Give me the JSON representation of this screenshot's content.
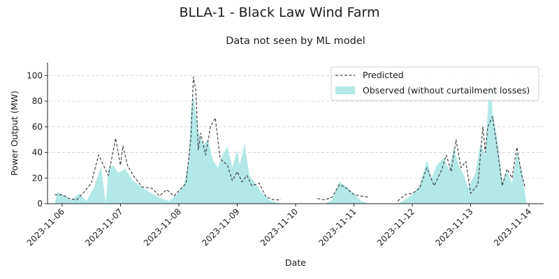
{
  "chart_data": {
    "type": "line",
    "title": "BLLA-1 - Black Law Wind Farm",
    "subtitle": "Data not seen by ML model",
    "xlabel": "Date",
    "ylabel": "Power Output (MW)",
    "ylim": [
      0,
      110
    ],
    "yticks": [
      0,
      20,
      40,
      60,
      80,
      100
    ],
    "xlim": [
      "2023-11-05 18:00",
      "2023-11-14 06:00"
    ],
    "xticks": [
      "2023-11-06",
      "2023-11-07",
      "2023-11-08",
      "2023-11-09",
      "2023-11-10",
      "2023-11-11",
      "2023-11-12",
      "2023-11-13",
      "2023-11-14"
    ],
    "grid": "horizontal dashed",
    "legend": {
      "position": "top-right",
      "entries": [
        "Predicted",
        "Observed (without curtailment losses)"
      ]
    },
    "series": [
      {
        "name": "Predicted",
        "style": "dashed line",
        "color": "#444444",
        "points": [
          [
            "2023-11-05 21:00",
            7
          ],
          [
            "2023-11-06 00:00",
            7
          ],
          [
            "2023-11-06 03:00",
            4
          ],
          [
            "2023-11-06 06:00",
            3
          ],
          [
            "2023-11-06 09:00",
            9
          ],
          [
            "2023-11-06 12:00",
            16
          ],
          [
            "2023-11-06 15:00",
            38
          ],
          [
            "2023-11-06 19:00",
            22
          ],
          [
            "2023-11-06 22:00",
            51
          ],
          [
            "2023-11-07 00:00",
            30
          ],
          [
            "2023-11-07 01:00",
            45
          ],
          [
            "2023-11-07 03:00",
            29
          ],
          [
            "2023-11-07 06:00",
            20
          ],
          [
            "2023-11-07 09:00",
            13
          ],
          [
            "2023-11-07 13:00",
            12
          ],
          [
            "2023-11-07 16:00",
            6
          ],
          [
            "2023-11-07 19:00",
            11
          ],
          [
            "2023-11-07 22:00",
            6
          ],
          [
            "2023-11-08 00:00",
            10
          ],
          [
            "2023-11-08 03:00",
            16
          ],
          [
            "2023-11-08 05:00",
            52
          ],
          [
            "2023-11-08 06:00",
            99
          ],
          [
            "2023-11-08 07:00",
            88
          ],
          [
            "2023-11-08 08:00",
            42
          ],
          [
            "2023-11-08 09:00",
            55
          ],
          [
            "2023-11-08 11:00",
            38
          ],
          [
            "2023-11-08 13:00",
            60
          ],
          [
            "2023-11-08 15:00",
            67
          ],
          [
            "2023-11-08 17:00",
            35
          ],
          [
            "2023-11-08 20:00",
            30
          ],
          [
            "2023-11-08 22:00",
            18
          ],
          [
            "2023-11-09 00:00",
            25
          ],
          [
            "2023-11-09 02:00",
            17
          ],
          [
            "2023-11-09 04:00",
            22
          ],
          [
            "2023-11-09 06:00",
            14
          ],
          [
            "2023-11-09 09:00",
            16
          ],
          [
            "2023-11-09 12:00",
            5
          ],
          [
            "2023-11-09 15:00",
            3
          ],
          [
            "2023-11-09 18:00",
            3
          ],
          [
            "2023-11-10 09:00",
            4
          ],
          [
            "2023-11-10 12:00",
            3
          ],
          [
            "2023-11-10 15:00",
            5
          ],
          [
            "2023-11-10 18:00",
            15
          ],
          [
            "2023-11-10 21:00",
            12
          ],
          [
            "2023-11-11 00:00",
            7
          ],
          [
            "2023-11-11 03:00",
            6
          ],
          [
            "2023-11-11 06:00",
            5
          ],
          [
            "2023-11-11 18:00",
            2
          ],
          [
            "2023-11-11 21:00",
            7
          ],
          [
            "2023-11-12 00:00",
            8
          ],
          [
            "2023-11-12 03:00",
            12
          ],
          [
            "2023-11-12 06:00",
            28
          ],
          [
            "2023-11-12 09:00",
            14
          ],
          [
            "2023-11-12 12:00",
            26
          ],
          [
            "2023-11-12 14:00",
            38
          ],
          [
            "2023-11-12 16:00",
            25
          ],
          [
            "2023-11-12 18:00",
            50
          ],
          [
            "2023-11-12 20:00",
            28
          ],
          [
            "2023-11-12 22:00",
            33
          ],
          [
            "2023-11-13 00:00",
            8
          ],
          [
            "2023-11-13 03:00",
            15
          ],
          [
            "2023-11-13 05:00",
            60
          ],
          [
            "2023-11-13 06:00",
            40
          ],
          [
            "2023-11-13 07:00",
            60
          ],
          [
            "2023-11-13 09:00",
            68
          ],
          [
            "2023-11-13 11:00",
            42
          ],
          [
            "2023-11-13 13:00",
            14
          ],
          [
            "2023-11-13 15:00",
            27
          ],
          [
            "2023-11-13 17:00",
            20
          ],
          [
            "2023-11-13 19:00",
            44
          ],
          [
            "2023-11-13 21:00",
            22
          ],
          [
            "2023-11-13 22:30",
            12
          ]
        ]
      },
      {
        "name": "Observed (without curtailment losses)",
        "style": "filled area",
        "color": "#b2e8e6",
        "points": [
          [
            "2023-11-05 21:00",
            0
          ],
          [
            "2023-11-05 22:00",
            9
          ],
          [
            "2023-11-06 01:00",
            6
          ],
          [
            "2023-11-06 04:00",
            3
          ],
          [
            "2023-11-06 07:00",
            8
          ],
          [
            "2023-11-06 10:00",
            2
          ],
          [
            "2023-11-06 13:00",
            12
          ],
          [
            "2023-11-06 16:00",
            29
          ],
          [
            "2023-11-06 18:00",
            0
          ],
          [
            "2023-11-06 19:00",
            27
          ],
          [
            "2023-11-06 21:00",
            30
          ],
          [
            "2023-11-06 23:00",
            24
          ],
          [
            "2023-11-07 02:00",
            27
          ],
          [
            "2023-11-07 05:00",
            18
          ],
          [
            "2023-11-07 08:00",
            14
          ],
          [
            "2023-11-07 11:00",
            10
          ],
          [
            "2023-11-07 14:00",
            7
          ],
          [
            "2023-11-07 17:00",
            4
          ],
          [
            "2023-11-07 20:00",
            2
          ],
          [
            "2023-11-07 23:00",
            7
          ],
          [
            "2023-11-08 02:00",
            14
          ],
          [
            "2023-11-08 04:00",
            33
          ],
          [
            "2023-11-08 05:00",
            72
          ],
          [
            "2023-11-08 06:00",
            84
          ],
          [
            "2023-11-08 08:00",
            56
          ],
          [
            "2023-11-08 10:00",
            46
          ],
          [
            "2023-11-08 12:00",
            50
          ],
          [
            "2023-11-08 14:00",
            34
          ],
          [
            "2023-11-08 16:00",
            28
          ],
          [
            "2023-11-08 18:00",
            38
          ],
          [
            "2023-11-08 20:00",
            45
          ],
          [
            "2023-11-08 22:00",
            28
          ],
          [
            "2023-11-09 00:00",
            42
          ],
          [
            "2023-11-09 01:00",
            30
          ],
          [
            "2023-11-09 03:00",
            47
          ],
          [
            "2023-11-09 05:00",
            22
          ],
          [
            "2023-11-09 07:00",
            17
          ],
          [
            "2023-11-09 10:00",
            9
          ],
          [
            "2023-11-09 13:00",
            3
          ],
          [
            "2023-11-09 16:00",
            1
          ],
          [
            "2023-11-09 19:00",
            0
          ],
          [
            "2023-11-10 12:00",
            0
          ],
          [
            "2023-11-10 15:00",
            3
          ],
          [
            "2023-11-10 18:00",
            17
          ],
          [
            "2023-11-10 21:00",
            13
          ],
          [
            "2023-11-11 00:00",
            8
          ],
          [
            "2023-11-11 03:00",
            2
          ],
          [
            "2023-11-11 06:00",
            0
          ],
          [
            "2023-11-11 18:00",
            0
          ],
          [
            "2023-11-11 21:00",
            3
          ],
          [
            "2023-11-12 00:00",
            7
          ],
          [
            "2023-11-12 03:00",
            14
          ],
          [
            "2023-11-12 06:00",
            34
          ],
          [
            "2023-11-12 08:00",
            20
          ],
          [
            "2023-11-12 10:00",
            30
          ],
          [
            "2023-11-12 13:00",
            36
          ],
          [
            "2023-11-12 15:00",
            26
          ],
          [
            "2023-11-12 17:00",
            44
          ],
          [
            "2023-11-12 19:00",
            30
          ],
          [
            "2023-11-12 21:00",
            23
          ],
          [
            "2023-11-12 23:00",
            12
          ],
          [
            "2023-11-13 02:00",
            24
          ],
          [
            "2023-11-13 04:00",
            47
          ],
          [
            "2023-11-13 06:00",
            38
          ],
          [
            "2023-11-13 08:00",
            104
          ],
          [
            "2023-11-13 09:00",
            72
          ],
          [
            "2023-11-13 11:00",
            50
          ],
          [
            "2023-11-13 13:00",
            18
          ],
          [
            "2023-11-13 15:00",
            25
          ],
          [
            "2023-11-13 17:00",
            16
          ],
          [
            "2023-11-13 19:00",
            40
          ],
          [
            "2023-11-13 21:00",
            26
          ],
          [
            "2023-11-13 23:00",
            0
          ]
        ]
      }
    ]
  }
}
